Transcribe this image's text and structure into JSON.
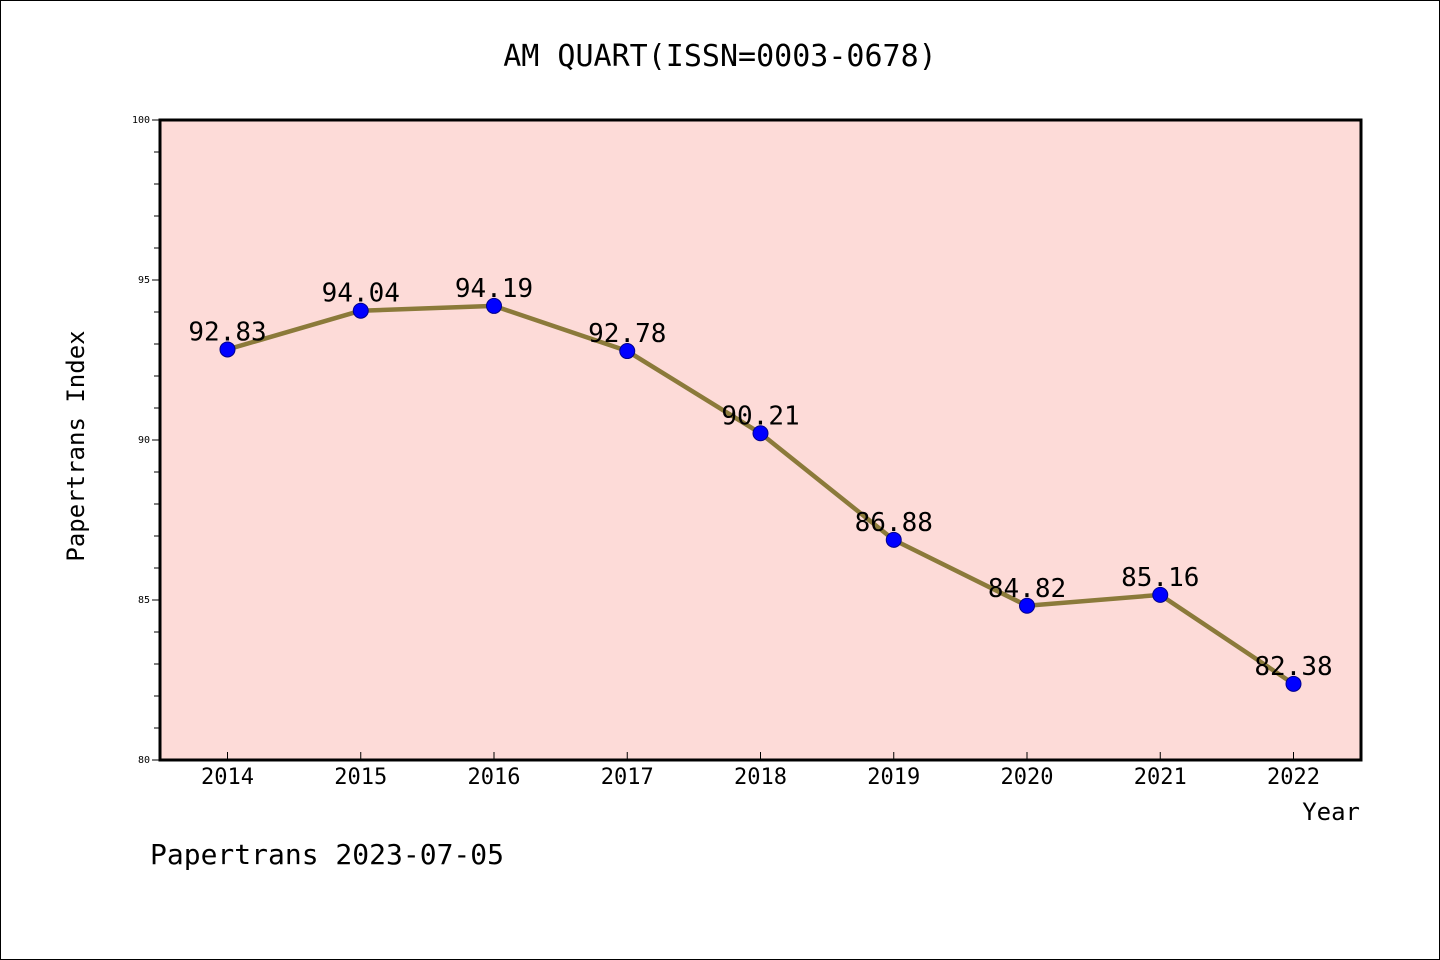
{
  "chart_data": {
    "type": "line",
    "title": "AM QUART(ISSN=0003-0678)",
    "xlabel": "Year",
    "ylabel": "Papertrans Index",
    "categories": [
      "2014",
      "2015",
      "2016",
      "2017",
      "2018",
      "2019",
      "2020",
      "2021",
      "2022"
    ],
    "values": [
      92.83,
      94.04,
      94.19,
      92.78,
      90.21,
      86.88,
      84.82,
      85.16,
      82.38
    ],
    "data_labels": [
      "92.83",
      "94.04",
      "94.19",
      "92.78",
      "90.21",
      "86.88",
      "84.82",
      "85.16",
      "82.38"
    ],
    "y_ticks": [
      "80",
      "85",
      "90",
      "95",
      "100"
    ],
    "ylim": [
      80,
      100
    ],
    "grid": false,
    "legend": "none",
    "colors": {
      "plot_background": "#fddbd8",
      "line": "#8b7a3a",
      "marker": "#0000ff"
    }
  },
  "footer": "Papertrans 2023-07-05"
}
